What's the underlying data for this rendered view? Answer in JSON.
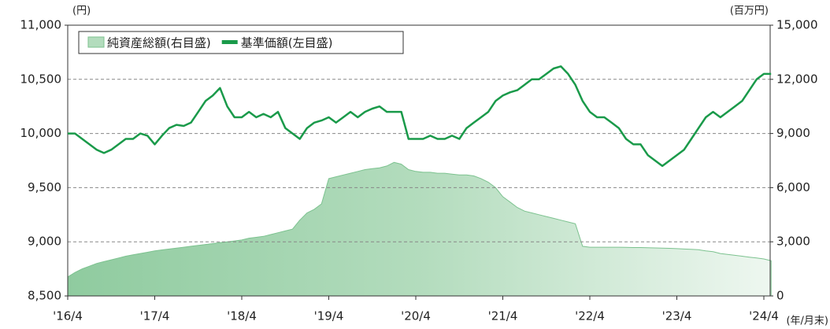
{
  "chart_data": {
    "type": "line",
    "y_unit_label": "(円)",
    "y2_unit_label": "(百万円)",
    "x_label": "(年/月末)",
    "categories": [
      "'16/4",
      null,
      null,
      null,
      null,
      null,
      null,
      null,
      null,
      null,
      null,
      null,
      "'17/4",
      null,
      null,
      null,
      null,
      null,
      null,
      null,
      null,
      null,
      null,
      null,
      "'18/4",
      null,
      null,
      null,
      null,
      null,
      null,
      null,
      null,
      null,
      null,
      null,
      "'19/4",
      null,
      null,
      null,
      null,
      null,
      null,
      null,
      null,
      null,
      null,
      null,
      "'20/4",
      null,
      null,
      null,
      null,
      null,
      null,
      null,
      null,
      null,
      null,
      null,
      "'21/4",
      null,
      null,
      null,
      null,
      null,
      null,
      null,
      null,
      null,
      null,
      null,
      "'22/4",
      null,
      null,
      null,
      null,
      null,
      null,
      null,
      null,
      null,
      null,
      null,
      "'23/4",
      null,
      null,
      null,
      null,
      null,
      null,
      null,
      null,
      null,
      null,
      null,
      "'24/4",
      null
    ],
    "series": [
      {
        "name": "基準価額(左目盛)",
        "color": "#1a9a4a",
        "axis": "y",
        "values": [
          10000,
          10000,
          9950,
          9900,
          9850,
          9820,
          9850,
          9900,
          9950,
          9950,
          10000,
          9980,
          9900,
          9980,
          10050,
          10080,
          10070,
          10100,
          10200,
          10300,
          10350,
          10420,
          10250,
          10150,
          10150,
          10200,
          10150,
          10180,
          10150,
          10200,
          10050,
          10000,
          9950,
          10050,
          10100,
          10120,
          10150,
          10100,
          10150,
          10200,
          10150,
          10200,
          10230,
          10250,
          10200,
          10200,
          10200,
          9950,
          9950,
          9950,
          9980,
          9950,
          9950,
          9980,
          9950,
          10050,
          10100,
          10150,
          10200,
          10300,
          10350,
          10380,
          10400,
          10450,
          10500,
          10500,
          10550,
          10600,
          10620,
          10550,
          10450,
          10300,
          10200,
          10150,
          10150,
          10100,
          10050,
          9950,
          9900,
          9900,
          9800,
          9750,
          9700,
          9750,
          9800,
          9850,
          9950,
          10050,
          10150,
          10200,
          10150,
          10200,
          10250,
          10300,
          10400,
          10500,
          10550,
          10550
        ]
      },
      {
        "name": "純資産総額(右目盛)",
        "color": "#7cc28f",
        "axis": "y2",
        "values": [
          1050,
          1300,
          1500,
          1650,
          1800,
          1900,
          2000,
          2100,
          2200,
          2280,
          2350,
          2420,
          2500,
          2550,
          2600,
          2650,
          2700,
          2750,
          2800,
          2850,
          2900,
          2950,
          3000,
          3050,
          3100,
          3200,
          3250,
          3300,
          3400,
          3500,
          3600,
          3700,
          4200,
          4600,
          4800,
          5100,
          6500,
          6600,
          6700,
          6800,
          6900,
          7000,
          7050,
          7100,
          7200,
          7400,
          7300,
          7000,
          6900,
          6850,
          6850,
          6800,
          6800,
          6750,
          6700,
          6700,
          6650,
          6500,
          6300,
          6000,
          5500,
          5200,
          4900,
          4700,
          4600,
          4500,
          4400,
          4300,
          4200,
          4100,
          4000,
          2750,
          2700,
          2700,
          2700,
          2700,
          2700,
          2690,
          2680,
          2680,
          2670,
          2660,
          2650,
          2640,
          2620,
          2600,
          2580,
          2560,
          2500,
          2450,
          2350,
          2300,
          2250,
          2200,
          2150,
          2100,
          2050,
          1950
        ]
      }
    ],
    "ylim": [
      8500,
      11000
    ],
    "yticks": [
      {
        "value": 8500,
        "label": "8,500"
      },
      {
        "value": 9000,
        "label": "9,000"
      },
      {
        "value": 9500,
        "label": "9,500"
      },
      {
        "value": 10000,
        "label": "10,000"
      },
      {
        "value": 10500,
        "label": "10,500"
      },
      {
        "value": 11000,
        "label": "11,000"
      }
    ],
    "y2lim": [
      0,
      15000
    ],
    "y2ticks": [
      0,
      {
        "value": 3000,
        "label": "3,000"
      },
      {
        "value": 6000,
        "label": "6,000"
      },
      {
        "value": 9000,
        "label": "9,000"
      },
      {
        "value": 12000,
        "label": "12,000"
      },
      {
        "value": 15000,
        "label": "15,000"
      }
    ],
    "grid": true,
    "legend": "top-left"
  }
}
